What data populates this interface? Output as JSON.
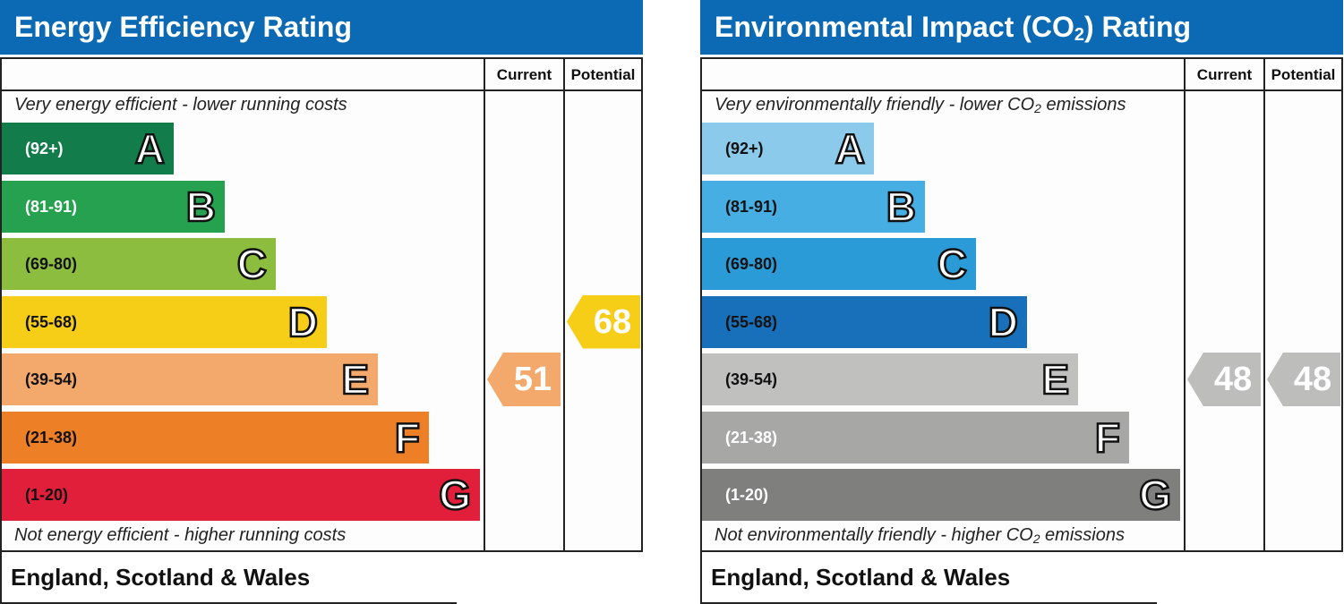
{
  "chart_data": [
    {
      "type": "rating-bands",
      "title": "Energy Efficiency Rating",
      "columns": [
        "Current",
        "Potential"
      ],
      "top_note": "Very energy efficient - lower running costs",
      "bottom_note": "Not energy efficient - higher running costs",
      "footer": "England, Scotland & Wales",
      "bands": [
        {
          "range": "(92+)",
          "letter": "A",
          "color": "#127c4a",
          "text_color": "#ffffff"
        },
        {
          "range": "(81-91)",
          "letter": "B",
          "color": "#25a14f",
          "text_color": "#ffffff"
        },
        {
          "range": "(69-80)",
          "letter": "C",
          "color": "#8dbd3f",
          "text_color": "#111111"
        },
        {
          "range": "(55-68)",
          "letter": "D",
          "color": "#f6cd17",
          "text_color": "#111111"
        },
        {
          "range": "(39-54)",
          "letter": "E",
          "color": "#f2a96b",
          "text_color": "#111111"
        },
        {
          "range": "(21-38)",
          "letter": "F",
          "color": "#ed7f26",
          "text_color": "#111111"
        },
        {
          "range": "(1-20)",
          "letter": "G",
          "color": "#e21f3b",
          "text_color": "#111111"
        }
      ],
      "ratings": [
        {
          "column": "Current",
          "value": 51,
          "band": "E",
          "color": "#f2a96b"
        },
        {
          "column": "Potential",
          "value": 68,
          "band": "D",
          "color": "#f6cd17"
        }
      ]
    },
    {
      "type": "rating-bands",
      "title": "Environmental Impact (CO",
      "title_sub": "2",
      "title_end": ") Rating",
      "columns": [
        "Current",
        "Potential"
      ],
      "top_note": "Very environmentally friendly - lower CO",
      "top_note_sub": "2",
      "top_note_end": " emissions",
      "bottom_note": "Not environmentally friendly - higher CO",
      "bottom_note_sub": "2",
      "bottom_note_end": " emissions",
      "footer": "England, Scotland & Wales",
      "bands": [
        {
          "range": "(92+)",
          "letter": "A",
          "color": "#8ccaeb",
          "text_color": "#111111"
        },
        {
          "range": "(81-91)",
          "letter": "B",
          "color": "#47aee3",
          "text_color": "#111111"
        },
        {
          "range": "(69-80)",
          "letter": "C",
          "color": "#2a9bd6",
          "text_color": "#111111"
        },
        {
          "range": "(55-68)",
          "letter": "D",
          "color": "#1870ba",
          "text_color": "#111111"
        },
        {
          "range": "(39-54)",
          "letter": "E",
          "color": "#c0c0bf",
          "text_color": "#111111"
        },
        {
          "range": "(21-38)",
          "letter": "F",
          "color": "#a7a7a6",
          "text_color": "#ffffff"
        },
        {
          "range": "(1-20)",
          "letter": "G",
          "color": "#7f7f7e",
          "text_color": "#ffffff"
        }
      ],
      "ratings": [
        {
          "column": "Current",
          "value": 48,
          "band": "E",
          "color": "#bdbdbc"
        },
        {
          "column": "Potential",
          "value": 48,
          "band": "E",
          "color": "#bdbdbc"
        }
      ]
    }
  ]
}
